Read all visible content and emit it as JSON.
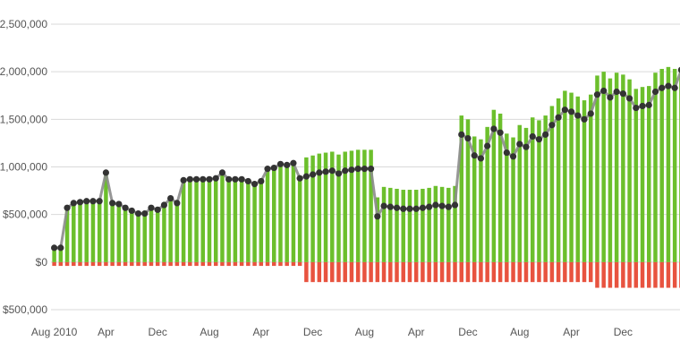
{
  "chart_data": {
    "type": "bar",
    "y_tick_labels": [
      "$500,000",
      "$0",
      "$500,000",
      "1,000,000",
      "1,500,000",
      "2,000,000",
      "2,500,000"
    ],
    "y_tick_values": [
      -500000,
      0,
      500000,
      1000000,
      1500000,
      2000000,
      2500000
    ],
    "x_tick_labels": [
      "Aug 2010",
      "Apr",
      "Dec",
      "Aug",
      "Apr",
      "Dec",
      "Aug",
      "Apr",
      "Dec",
      "Aug",
      "Apr",
      "Dec"
    ],
    "x_tick_indices": [
      0,
      8,
      16,
      24,
      32,
      40,
      48,
      56,
      64,
      72,
      80,
      88
    ],
    "ylim": [
      -500000,
      2500000
    ],
    "grid": true,
    "colors": {
      "positive": "#6cbf2c",
      "negative": "#e8533f",
      "line": "#8c8c8c",
      "marker": "#333333",
      "grid": "#d9d9d9"
    },
    "series": [
      {
        "values": [
          150000,
          150000,
          580000,
          630000,
          630000,
          650000,
          650000,
          650000,
          950000,
          640000,
          630000,
          590000,
          560000,
          530000,
          530000,
          590000,
          570000,
          620000,
          690000,
          640000,
          880000,
          890000,
          890000,
          890000,
          890000,
          900000,
          950000,
          890000,
          890000,
          890000,
          870000,
          840000,
          870000,
          1000000,
          1010000,
          1050000,
          1040000,
          1060000,
          900000,
          1100000,
          1120000,
          1140000,
          1150000,
          1160000,
          1130000,
          1160000,
          1170000,
          1180000,
          1180000,
          1180000,
          680000,
          790000,
          780000,
          770000,
          760000,
          760000,
          760000,
          770000,
          780000,
          800000,
          790000,
          780000,
          800000,
          1540000,
          1500000,
          1320000,
          1290000,
          1420000,
          1600000,
          1560000,
          1350000,
          1310000,
          1440000,
          1410000,
          1520000,
          1490000,
          1540000,
          1640000,
          1720000,
          1800000,
          1780000,
          1740000,
          1700000,
          1760000,
          1960000,
          2000000,
          1930000,
          1990000,
          1970000,
          1920000,
          1820000,
          1840000,
          1850000,
          1990000,
          2030000,
          2050000,
          2030000,
          2020000
        ]
      },
      {
        "values": [
          -40000,
          -40000,
          -40000,
          -40000,
          -40000,
          -40000,
          -40000,
          -40000,
          -40000,
          -40000,
          -40000,
          -40000,
          -40000,
          -40000,
          -40000,
          -40000,
          -40000,
          -40000,
          -40000,
          -40000,
          -40000,
          -40000,
          -40000,
          -40000,
          -40000,
          -40000,
          -40000,
          -40000,
          -40000,
          -40000,
          -40000,
          -40000,
          -40000,
          -40000,
          -40000,
          -40000,
          -40000,
          -40000,
          -40000,
          -210000,
          -210000,
          -210000,
          -210000,
          -210000,
          -210000,
          -210000,
          -210000,
          -210000,
          -210000,
          -210000,
          -210000,
          -210000,
          -210000,
          -210000,
          -210000,
          -210000,
          -210000,
          -210000,
          -210000,
          -210000,
          -210000,
          -210000,
          -210000,
          -210000,
          -210000,
          -210000,
          -210000,
          -210000,
          -210000,
          -210000,
          -210000,
          -210000,
          -210000,
          -210000,
          -210000,
          -210000,
          -210000,
          -210000,
          -210000,
          -210000,
          -210000,
          -210000,
          -210000,
          -210000,
          -270000,
          -270000,
          -270000,
          -270000,
          -270000,
          -270000,
          -270000,
          -270000,
          -270000,
          -270000,
          -270000,
          -270000,
          -270000,
          -270000
        ]
      },
      {
        "values": [
          150000,
          150000,
          570000,
          620000,
          630000,
          640000,
          640000,
          640000,
          940000,
          620000,
          610000,
          570000,
          540000,
          510000,
          510000,
          570000,
          550000,
          600000,
          670000,
          620000,
          860000,
          870000,
          870000,
          870000,
          870000,
          880000,
          940000,
          870000,
          870000,
          870000,
          850000,
          820000,
          850000,
          980000,
          990000,
          1030000,
          1020000,
          1040000,
          880000,
          900000,
          920000,
          940000,
          950000,
          960000,
          930000,
          960000,
          970000,
          980000,
          980000,
          980000,
          480000,
          590000,
          580000,
          570000,
          560000,
          560000,
          560000,
          570000,
          580000,
          600000,
          590000,
          580000,
          600000,
          1340000,
          1300000,
          1120000,
          1090000,
          1220000,
          1400000,
          1360000,
          1150000,
          1110000,
          1240000,
          1210000,
          1320000,
          1290000,
          1340000,
          1440000,
          1520000,
          1600000,
          1580000,
          1540000,
          1500000,
          1560000,
          1760000,
          1800000,
          1730000,
          1790000,
          1770000,
          1720000,
          1620000,
          1640000,
          1650000,
          1790000,
          1830000,
          1850000,
          1830000,
          2020000
        ]
      }
    ]
  }
}
